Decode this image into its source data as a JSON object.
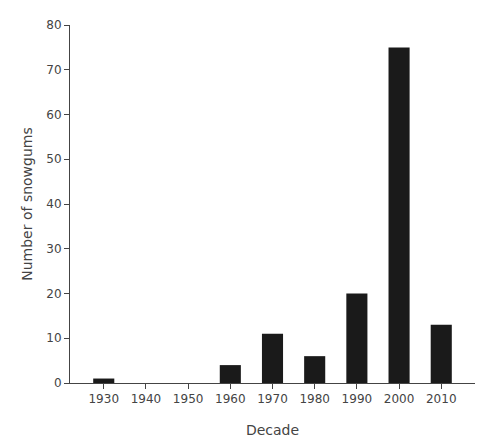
{
  "chart_data": {
    "type": "bar",
    "x": [
      1930,
      1940,
      1950,
      1960,
      1970,
      1980,
      1990,
      2000,
      2010
    ],
    "values": [
      1,
      0,
      0,
      4,
      11,
      6,
      20,
      75,
      13
    ],
    "color": "#1a1a1a",
    "xlabel": "Decade",
    "ylabel": "Number of snowgums",
    "xlim": [
      1922,
      2018
    ],
    "xticks": [
      1930,
      1940,
      1950,
      1960,
      1970,
      1980,
      1990,
      2000,
      2010
    ],
    "ylim": [
      0,
      80
    ],
    "yticks": [
      0,
      10,
      20,
      30,
      40,
      50,
      60,
      70,
      80
    ],
    "grid": false
  }
}
